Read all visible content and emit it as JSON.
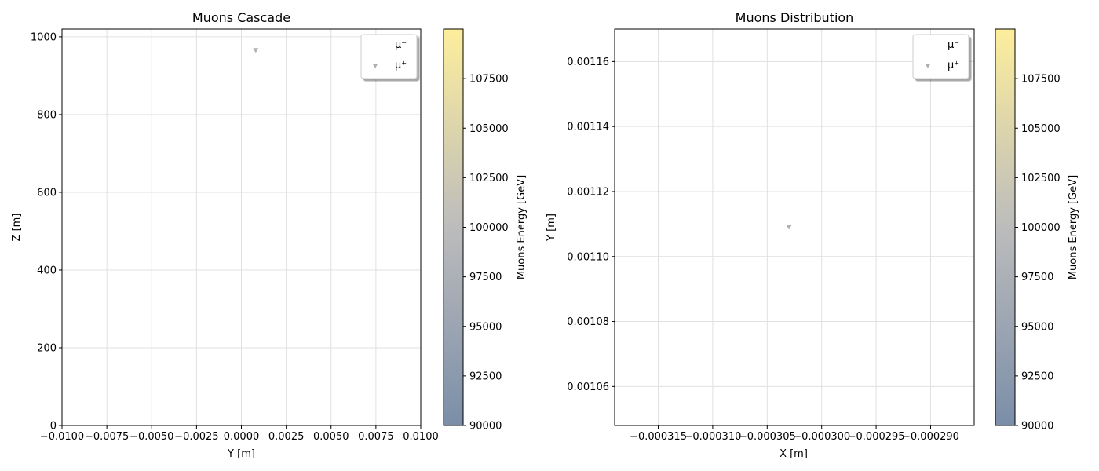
{
  "colorbar": {
    "label": "Muons Energy [GeV]",
    "vmin": 90000,
    "vmax": 110000,
    "ticks": [
      90000,
      92500,
      95000,
      97500,
      100000,
      102500,
      105000,
      107500
    ],
    "colors": [
      "#7b8ea8",
      "#bcbcbc",
      "#fdee9c"
    ]
  },
  "chart_data": [
    {
      "type": "scatter",
      "title": "Muons Cascade",
      "xlabel": "Y [m]",
      "ylabel": "Z [m]",
      "xlim": [
        -0.01,
        0.01
      ],
      "ylim": [
        0,
        1020
      ],
      "xticks": [
        -0.01,
        -0.0075,
        -0.005,
        -0.0025,
        0.0,
        0.0025,
        0.005,
        0.0075,
        0.01
      ],
      "xtick_labels": [
        "−0.0100",
        "−0.0075",
        "−0.0050",
        "−0.0025",
        "0.0000",
        "0.0025",
        "0.0050",
        "0.0075",
        "0.0100"
      ],
      "yticks": [
        0,
        200,
        400,
        600,
        800,
        1000
      ],
      "ytick_labels": [
        "0",
        "200",
        "400",
        "600",
        "800",
        "1000"
      ],
      "grid": true,
      "legend_position": "top-right",
      "series": [
        {
          "name": "μ⁻",
          "marker": "none",
          "color": "#ffffff",
          "points": []
        },
        {
          "name": "μ⁺",
          "marker": "triangle-down",
          "color": "#b0b0b0",
          "points": [
            {
              "x": 0.0008,
              "y": 965
            }
          ]
        }
      ]
    },
    {
      "type": "scatter",
      "title": "Muons Distribution",
      "xlabel": "X [m]",
      "ylabel": "Y [m]",
      "xlim": [
        -0.000319,
        -0.000286
      ],
      "ylim": [
        0.001048,
        0.00117
      ],
      "xticks": [
        -0.000315,
        -0.00031,
        -0.000305,
        -0.0003,
        -0.000295,
        -0.00029
      ],
      "xtick_labels": [
        "−0.000315",
        "−0.000310",
        "−0.000305",
        "−0.000300",
        "−0.000295",
        "−0.000290"
      ],
      "yticks": [
        0.00106,
        0.00108,
        0.0011,
        0.00112,
        0.00114,
        0.00116
      ],
      "ytick_labels": [
        "0.00106",
        "0.00108",
        "0.00110",
        "0.00112",
        "0.00114",
        "0.00116"
      ],
      "grid": true,
      "legend_position": "top-right",
      "series": [
        {
          "name": "μ⁻",
          "marker": "none",
          "color": "#ffffff",
          "points": []
        },
        {
          "name": "μ⁺",
          "marker": "triangle-down",
          "color": "#b0b0b0",
          "points": [
            {
              "x": -0.000303,
              "y": 0.001109
            }
          ]
        }
      ]
    }
  ]
}
